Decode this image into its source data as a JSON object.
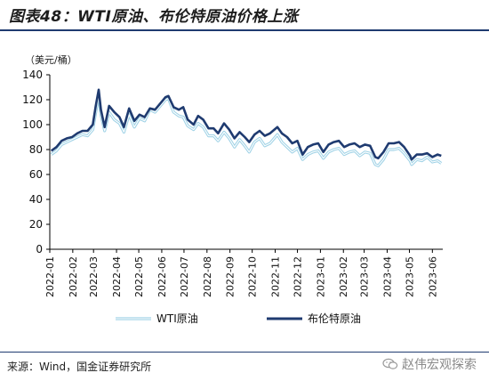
{
  "title": "图表48：WTI原油、布伦特原油价格上涨",
  "source": "来源：Wind，国金证券研究所",
  "watermark": "赵伟宏观探索",
  "colors": {
    "wti": "#9fd2e6",
    "brent": "#1f3b70",
    "axis": "#000000"
  },
  "chart_data": {
    "type": "line",
    "unit_label": "（美元/桶）",
    "ylim": [
      0,
      140
    ],
    "yticks": [
      0,
      20,
      40,
      60,
      80,
      100,
      120,
      140
    ],
    "xlim": [
      "2022-01-01",
      "2023-06-15"
    ],
    "xticks": [
      "2022-01",
      "2022-02",
      "2022-03",
      "2022-04",
      "2022-05",
      "2022-06",
      "2022-07",
      "2022-08",
      "2022-09",
      "2022-10",
      "2022-11",
      "2022-12",
      "2023-01",
      "2023-02",
      "2023-03",
      "2023-04",
      "2023-05",
      "2023-06"
    ],
    "grid": false,
    "legend": "bottom",
    "series": [
      {
        "name": "WTI原油",
        "style": "double-line",
        "points": [
          [
            "2022-01-03",
            76
          ],
          [
            "2022-01-10",
            79
          ],
          [
            "2022-01-17",
            84
          ],
          [
            "2022-01-24",
            86
          ],
          [
            "2022-01-31",
            88
          ],
          [
            "2022-02-07",
            90
          ],
          [
            "2022-02-14",
            92
          ],
          [
            "2022-02-21",
            91
          ],
          [
            "2022-02-28",
            96
          ],
          [
            "2022-03-04",
            110
          ],
          [
            "2022-03-08",
            123
          ],
          [
            "2022-03-11",
            108
          ],
          [
            "2022-03-16",
            95
          ],
          [
            "2022-03-22",
            110
          ],
          [
            "2022-03-29",
            104
          ],
          [
            "2022-04-05",
            101
          ],
          [
            "2022-04-11",
            94
          ],
          [
            "2022-04-18",
            108
          ],
          [
            "2022-04-25",
            98
          ],
          [
            "2022-05-02",
            105
          ],
          [
            "2022-05-09",
            103
          ],
          [
            "2022-05-16",
            112
          ],
          [
            "2022-05-23",
            110
          ],
          [
            "2022-05-30",
            115
          ],
          [
            "2022-06-06",
            120
          ],
          [
            "2022-06-10",
            121
          ],
          [
            "2022-06-17",
            110
          ],
          [
            "2022-06-24",
            107
          ],
          [
            "2022-06-30",
            106
          ],
          [
            "2022-07-06",
            99
          ],
          [
            "2022-07-14",
            96
          ],
          [
            "2022-07-20",
            101
          ],
          [
            "2022-07-27",
            98
          ],
          [
            "2022-08-03",
            91
          ],
          [
            "2022-08-10",
            91
          ],
          [
            "2022-08-16",
            87
          ],
          [
            "2022-08-24",
            94
          ],
          [
            "2022-08-31",
            89
          ],
          [
            "2022-09-07",
            82
          ],
          [
            "2022-09-14",
            88
          ],
          [
            "2022-09-21",
            83
          ],
          [
            "2022-09-27",
            78
          ],
          [
            "2022-10-04",
            86
          ],
          [
            "2022-10-11",
            89
          ],
          [
            "2022-10-18",
            83
          ],
          [
            "2022-10-25",
            85
          ],
          [
            "2022-11-04",
            92
          ],
          [
            "2022-11-10",
            86
          ],
          [
            "2022-11-17",
            82
          ],
          [
            "2022-11-24",
            78
          ],
          [
            "2022-12-01",
            81
          ],
          [
            "2022-12-08",
            72
          ],
          [
            "2022-12-15",
            76
          ],
          [
            "2022-12-22",
            78
          ],
          [
            "2022-12-29",
            79
          ],
          [
            "2023-01-05",
            73
          ],
          [
            "2023-01-12",
            78
          ],
          [
            "2023-01-19",
            80
          ],
          [
            "2023-01-26",
            81
          ],
          [
            "2023-02-02",
            76
          ],
          [
            "2023-02-09",
            78
          ],
          [
            "2023-02-16",
            79
          ],
          [
            "2023-02-23",
            75
          ],
          [
            "2023-03-02",
            78
          ],
          [
            "2023-03-09",
            77
          ],
          [
            "2023-03-16",
            68
          ],
          [
            "2023-03-20",
            67
          ],
          [
            "2023-03-27",
            72
          ],
          [
            "2023-04-03",
            80
          ],
          [
            "2023-04-10",
            80
          ],
          [
            "2023-04-17",
            81
          ],
          [
            "2023-04-24",
            77
          ],
          [
            "2023-05-02",
            71
          ],
          [
            "2023-05-04",
            68
          ],
          [
            "2023-05-11",
            72
          ],
          [
            "2023-05-18",
            71
          ],
          [
            "2023-05-25",
            74
          ],
          [
            "2023-06-01",
            70
          ],
          [
            "2023-06-08",
            71
          ],
          [
            "2023-06-13",
            69
          ]
        ]
      },
      {
        "name": "布伦特原油",
        "style": "solid",
        "points": [
          [
            "2022-01-03",
            79
          ],
          [
            "2022-01-10",
            82
          ],
          [
            "2022-01-17",
            87
          ],
          [
            "2022-01-24",
            89
          ],
          [
            "2022-01-31",
            90
          ],
          [
            "2022-02-07",
            93
          ],
          [
            "2022-02-14",
            95
          ],
          [
            "2022-02-21",
            95
          ],
          [
            "2022-02-28",
            100
          ],
          [
            "2022-03-04",
            115
          ],
          [
            "2022-03-08",
            128
          ],
          [
            "2022-03-11",
            112
          ],
          [
            "2022-03-16",
            98
          ],
          [
            "2022-03-22",
            115
          ],
          [
            "2022-03-29",
            110
          ],
          [
            "2022-04-05",
            106
          ],
          [
            "2022-04-11",
            98
          ],
          [
            "2022-04-18",
            113
          ],
          [
            "2022-04-25",
            103
          ],
          [
            "2022-05-02",
            108
          ],
          [
            "2022-05-09",
            106
          ],
          [
            "2022-05-16",
            113
          ],
          [
            "2022-05-23",
            112
          ],
          [
            "2022-05-30",
            117
          ],
          [
            "2022-06-06",
            122
          ],
          [
            "2022-06-10",
            123
          ],
          [
            "2022-06-17",
            114
          ],
          [
            "2022-06-24",
            112
          ],
          [
            "2022-06-30",
            114
          ],
          [
            "2022-07-06",
            104
          ],
          [
            "2022-07-14",
            100
          ],
          [
            "2022-07-20",
            107
          ],
          [
            "2022-07-27",
            104
          ],
          [
            "2022-08-03",
            97
          ],
          [
            "2022-08-10",
            97
          ],
          [
            "2022-08-16",
            93
          ],
          [
            "2022-08-24",
            101
          ],
          [
            "2022-08-31",
            96
          ],
          [
            "2022-09-07",
            89
          ],
          [
            "2022-09-14",
            94
          ],
          [
            "2022-09-21",
            90
          ],
          [
            "2022-09-27",
            86
          ],
          [
            "2022-10-04",
            92
          ],
          [
            "2022-10-11",
            95
          ],
          [
            "2022-10-18",
            91
          ],
          [
            "2022-10-25",
            93
          ],
          [
            "2022-11-04",
            98
          ],
          [
            "2022-11-10",
            93
          ],
          [
            "2022-11-17",
            90
          ],
          [
            "2022-11-24",
            85
          ],
          [
            "2022-12-01",
            87
          ],
          [
            "2022-12-08",
            76
          ],
          [
            "2022-12-15",
            82
          ],
          [
            "2022-12-22",
            84
          ],
          [
            "2022-12-29",
            85
          ],
          [
            "2023-01-05",
            78
          ],
          [
            "2023-01-12",
            84
          ],
          [
            "2023-01-19",
            86
          ],
          [
            "2023-01-26",
            87
          ],
          [
            "2023-02-02",
            82
          ],
          [
            "2023-02-09",
            84
          ],
          [
            "2023-02-16",
            85
          ],
          [
            "2023-02-23",
            82
          ],
          [
            "2023-03-02",
            84
          ],
          [
            "2023-03-09",
            83
          ],
          [
            "2023-03-16",
            74
          ],
          [
            "2023-03-20",
            73
          ],
          [
            "2023-03-27",
            78
          ],
          [
            "2023-04-03",
            85
          ],
          [
            "2023-04-10",
            85
          ],
          [
            "2023-04-17",
            86
          ],
          [
            "2023-04-24",
            82
          ],
          [
            "2023-05-02",
            75
          ],
          [
            "2023-05-04",
            72
          ],
          [
            "2023-05-11",
            76
          ],
          [
            "2023-05-18",
            76
          ],
          [
            "2023-05-25",
            77
          ],
          [
            "2023-06-01",
            74
          ],
          [
            "2023-06-08",
            76
          ],
          [
            "2023-06-13",
            75
          ]
        ]
      }
    ]
  }
}
